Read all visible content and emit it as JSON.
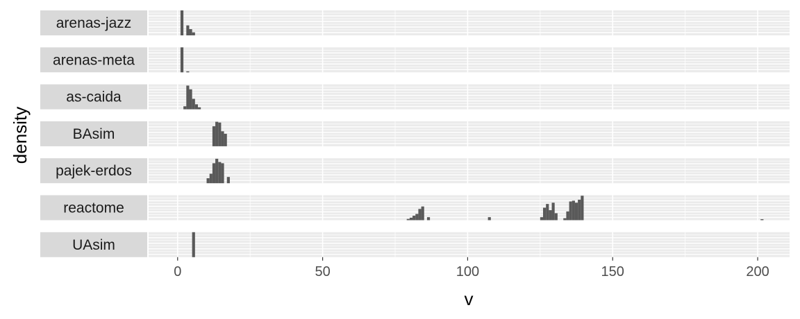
{
  "chart_data": {
    "type": "bar",
    "subtype": "faceted-histogram",
    "xlabel": "v",
    "ylabel": "density",
    "xlim": [
      -10,
      211
    ],
    "x_ticks": [
      0,
      50,
      100,
      150,
      200
    ],
    "bin_width": 1,
    "grid": true,
    "facet_labels": "left-strips",
    "colors": {
      "bar": "#595959",
      "panel_bg": "#ebebeb",
      "grid": "#ffffff",
      "strip_bg": "#d9d9d9"
    },
    "panels": [
      {
        "name": "arenas-jazz",
        "ymax": 1.0,
        "bars": [
          [
            1,
            1.0
          ],
          [
            3,
            0.4
          ],
          [
            4,
            0.25
          ],
          [
            5,
            0.12
          ]
        ]
      },
      {
        "name": "arenas-meta",
        "ymax": 1.0,
        "bars": [
          [
            1,
            1.0
          ],
          [
            3,
            0.04
          ]
        ]
      },
      {
        "name": "as-caida",
        "ymax": 1.0,
        "bars": [
          [
            2,
            0.12
          ],
          [
            3,
            0.95
          ],
          [
            4,
            0.8
          ],
          [
            5,
            0.42
          ],
          [
            6,
            0.2
          ],
          [
            7,
            0.08
          ]
        ]
      },
      {
        "name": "BAsim",
        "ymax": 1.0,
        "bars": [
          [
            12,
            0.8
          ],
          [
            13,
            0.98
          ],
          [
            14,
            0.95
          ],
          [
            15,
            0.6
          ],
          [
            16,
            0.5
          ]
        ]
      },
      {
        "name": "pajek-erdos",
        "ymax": 1.0,
        "bars": [
          [
            10,
            0.2
          ],
          [
            11,
            0.38
          ],
          [
            12,
            0.8
          ],
          [
            13,
            0.98
          ],
          [
            14,
            0.85
          ],
          [
            15,
            0.8
          ],
          [
            17,
            0.25
          ]
        ]
      },
      {
        "name": "reactome",
        "ymax": 1.0,
        "bars": [
          [
            79,
            0.05
          ],
          [
            80,
            0.1
          ],
          [
            81,
            0.18
          ],
          [
            82,
            0.25
          ],
          [
            83,
            0.45
          ],
          [
            84,
            0.55
          ],
          [
            86,
            0.12
          ],
          [
            107,
            0.12
          ],
          [
            125,
            0.12
          ],
          [
            126,
            0.5
          ],
          [
            127,
            0.65
          ],
          [
            128,
            0.4
          ],
          [
            129,
            0.7
          ],
          [
            130,
            0.28
          ],
          [
            133,
            0.08
          ],
          [
            134,
            0.35
          ],
          [
            135,
            0.75
          ],
          [
            136,
            0.78
          ],
          [
            137,
            0.7
          ],
          [
            138,
            0.82
          ],
          [
            139,
            0.98
          ],
          [
            201,
            0.04
          ]
        ]
      },
      {
        "name": "UAsim",
        "ymax": 1.0,
        "bars": [
          [
            5,
            1.0
          ]
        ]
      }
    ]
  }
}
